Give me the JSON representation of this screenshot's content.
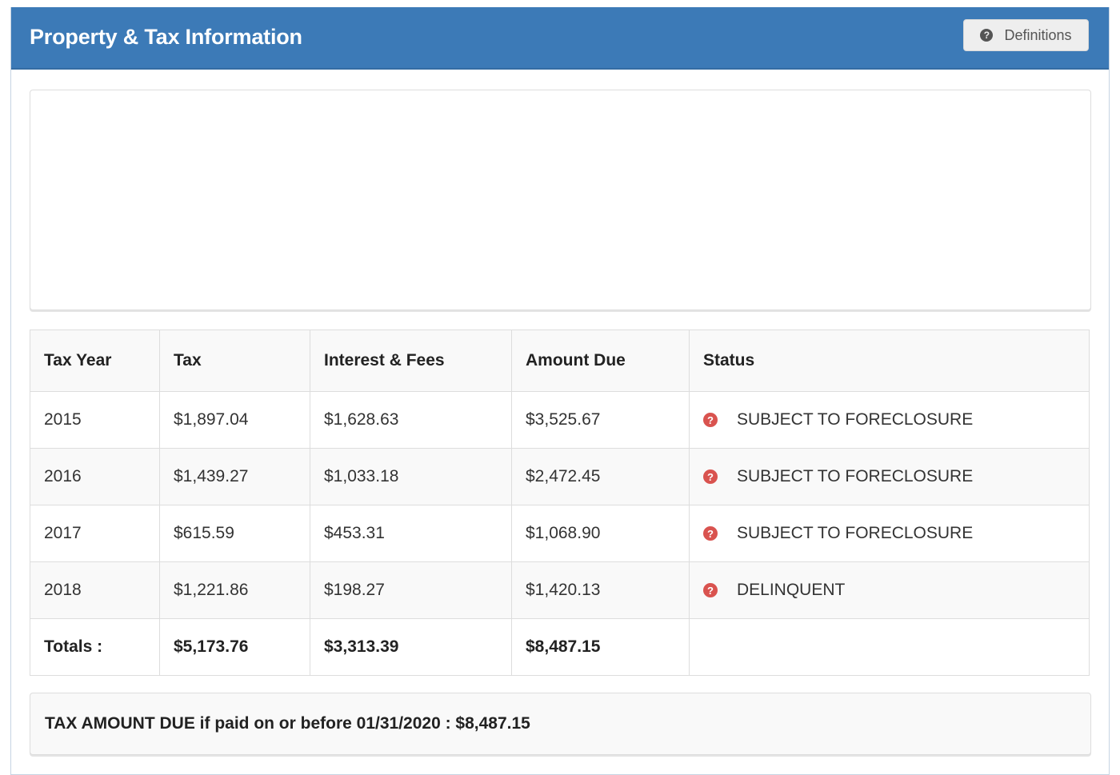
{
  "header": {
    "title": "Property & Tax Information",
    "definitions_label": "Definitions"
  },
  "table": {
    "columns": [
      "Tax Year",
      "Tax",
      "Interest & Fees",
      "Amount Due",
      "Status"
    ],
    "rows": [
      {
        "year": "2015",
        "tax": "$1,897.04",
        "interest": "$1,628.63",
        "amount": "$3,525.67",
        "status": "SUBJECT TO FORECLOSURE"
      },
      {
        "year": "2016",
        "tax": "$1,439.27",
        "interest": "$1,033.18",
        "amount": "$2,472.45",
        "status": "SUBJECT TO FORECLOSURE"
      },
      {
        "year": "2017",
        "tax": "$615.59",
        "interest": "$453.31",
        "amount": "$1,068.90",
        "status": "SUBJECT TO FORECLOSURE"
      },
      {
        "year": "2018",
        "tax": "$1,221.86",
        "interest": "$198.27",
        "amount": "$1,420.13",
        "status": "DELINQUENT"
      }
    ],
    "totals": {
      "label": "Totals :",
      "tax": "$5,173.76",
      "interest": "$3,313.39",
      "amount": "$8,487.15"
    }
  },
  "due": {
    "text": "TAX AMOUNT DUE if paid on or before 01/31/2020 : $8,487.15"
  },
  "icons": {
    "definitions": "question-circle-icon",
    "status": "question-circle-icon"
  },
  "colors": {
    "header_bg": "#3c7ab7",
    "status_icon": "#d9534f"
  }
}
